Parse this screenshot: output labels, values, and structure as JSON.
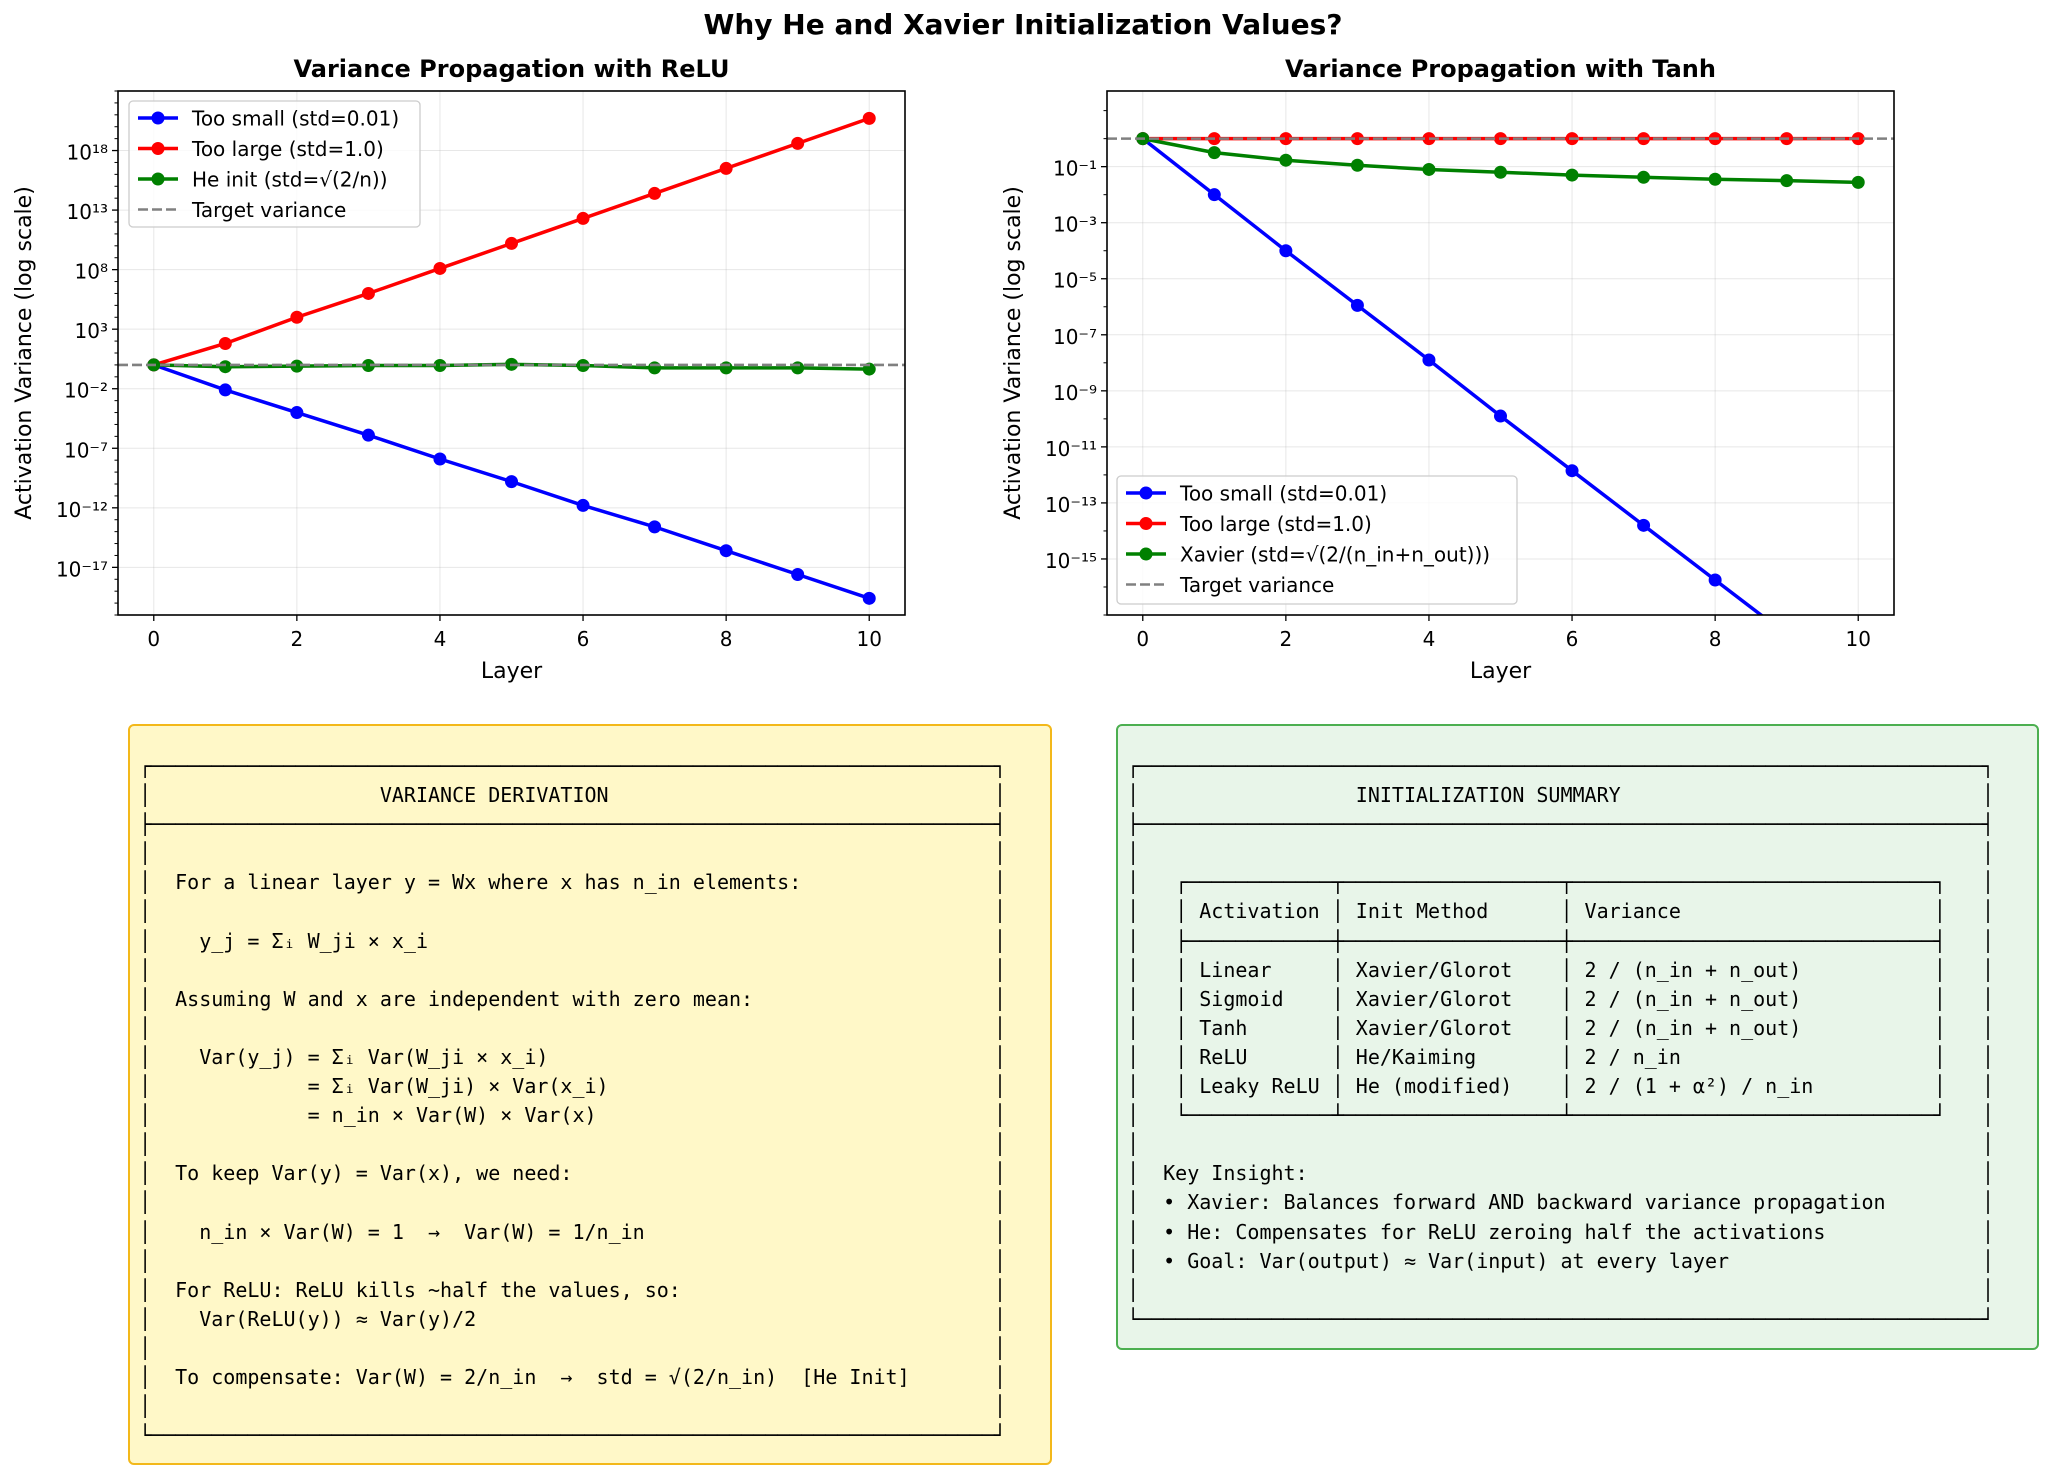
{
  "suptitle": "Why He and Xavier Initialization Values?",
  "colors": {
    "small": "#0000ff",
    "large": "#ff0000",
    "init": "#008000",
    "target": "#808080"
  },
  "chart_data": [
    {
      "type": "line",
      "title": "Variance Propagation with ReLU",
      "xlabel": "Layer",
      "ylabel": "Activation Variance (log scale)",
      "yscale": "log",
      "xlim": [
        -0.5,
        10.5
      ],
      "ylim_log10": [
        -21,
        23
      ],
      "xticks": [
        0,
        2,
        4,
        6,
        8,
        10
      ],
      "yticks_exp": [
        -17,
        -12,
        -7,
        -2,
        3,
        8,
        13,
        18
      ],
      "grid": true,
      "legend_loc": "upper-left",
      "x": [
        0,
        1,
        2,
        3,
        4,
        5,
        6,
        7,
        8,
        9,
        10
      ],
      "series": [
        {
          "name": "Too small (std=0.01)",
          "color": "#0000ff",
          "style": "solid",
          "marker": "o",
          "log10_values": [
            0,
            -2.1,
            -4.0,
            -5.9,
            -7.9,
            -9.8,
            -11.8,
            -13.6,
            -15.6,
            -17.6,
            -19.6
          ]
        },
        {
          "name": "Too large (std=1.0)",
          "color": "#ff0000",
          "style": "solid",
          "marker": "o",
          "log10_values": [
            0,
            1.8,
            4.0,
            6.0,
            8.1,
            10.2,
            12.3,
            14.4,
            16.5,
            18.6,
            20.7
          ]
        },
        {
          "name": "He init (std=√(2/n))",
          "color": "#008000",
          "style": "solid",
          "marker": "o",
          "log10_values": [
            0,
            -0.15,
            -0.1,
            -0.05,
            -0.05,
            0.05,
            -0.05,
            -0.25,
            -0.25,
            -0.25,
            -0.35
          ]
        },
        {
          "name": "Target variance",
          "color": "#808080",
          "style": "dashed",
          "marker": "none",
          "hline_log10": 0
        }
      ]
    },
    {
      "type": "line",
      "title": "Variance Propagation with Tanh",
      "xlabel": "Layer",
      "ylabel": "Activation Variance (log scale)",
      "yscale": "log",
      "xlim": [
        -0.5,
        10.5
      ],
      "ylim_log10": [
        -17,
        1.7
      ],
      "xticks": [
        0,
        2,
        4,
        6,
        8,
        10
      ],
      "yticks_exp": [
        -15,
        -13,
        -11,
        -9,
        -7,
        -5,
        -3,
        -1
      ],
      "grid": true,
      "legend_loc": "lower-left",
      "x": [
        0,
        1,
        2,
        3,
        4,
        5,
        6,
        7,
        8,
        9,
        10
      ],
      "series": [
        {
          "name": "Too small (std=0.01)",
          "color": "#0000ff",
          "style": "solid",
          "marker": "o",
          "log10_values": [
            0,
            -2.0,
            -4.0,
            -5.95,
            -7.9,
            -9.9,
            -11.85,
            -13.8,
            -15.75,
            -17.7,
            -19.6
          ]
        },
        {
          "name": "Too large (std=1.0)",
          "color": "#ff0000",
          "style": "solid",
          "marker": "o",
          "log10_values": [
            0,
            0,
            0,
            0,
            0,
            0,
            0,
            0,
            0,
            0,
            0
          ]
        },
        {
          "name": "Xavier (std=√(2/(n_in+n_out)))",
          "color": "#008000",
          "style": "solid",
          "marker": "o",
          "log10_values": [
            0,
            -0.5,
            -0.77,
            -0.95,
            -1.1,
            -1.2,
            -1.3,
            -1.38,
            -1.45,
            -1.5,
            -1.56
          ]
        },
        {
          "name": "Target variance",
          "color": "#808080",
          "style": "dashed",
          "marker": "none",
          "hline_log10": 0
        }
      ]
    }
  ],
  "derivation_text": "┌──────────────────────────────────────────────────────────────────────┐\n│                   VARIANCE DERIVATION                                │\n├──────────────────────────────────────────────────────────────────────┤\n│                                                                      │\n│  For a linear layer y = Wx where x has n_in elements:                │\n│                                                                      │\n│    y_j = Σᵢ W_ji × x_i                                               │\n│                                                                      │\n│  Assuming W and x are independent with zero mean:                    │\n│                                                                      │\n│    Var(y_j) = Σᵢ Var(W_ji × x_i)                                     │\n│             = Σᵢ Var(W_ji) × Var(x_i)                                │\n│             = n_in × Var(W) × Var(x)                                 │\n│                                                                      │\n│  To keep Var(y) = Var(x), we need:                                   │\n│                                                                      │\n│    n_in × Var(W) = 1  →  Var(W) = 1/n_in                             │\n│                                                                      │\n│  For ReLU: ReLU kills ~half the values, so:                          │\n│    Var(ReLU(y)) ≈ Var(y)/2                                           │\n│                                                                      │\n│  To compensate: Var(W) = 2/n_in  →  std = √(2/n_in)  [He Init]       │\n│                                                                      │\n└──────────────────────────────────────────────────────────────────────┘",
  "summary_text": "┌──────────────────────────────────────────────────────────────────────┐\n│                  INITIALIZATION SUMMARY                              │\n├──────────────────────────────────────────────────────────────────────┤\n│                                                                      │\n│   ┌────────────┬──────────────────┬──────────────────────────────┐   │\n│   │ Activation │ Init Method      │ Variance                     │   │\n│   ├────────────┼──────────────────┼──────────────────────────────┤   │\n│   │ Linear     │ Xavier/Glorot    │ 2 / (n_in + n_out)           │   │\n│   │ Sigmoid    │ Xavier/Glorot    │ 2 / (n_in + n_out)           │   │\n│   │ Tanh       │ Xavier/Glorot    │ 2 / (n_in + n_out)           │   │\n│   │ ReLU       │ He/Kaiming       │ 2 / n_in                     │   │\n│   │ Leaky ReLU │ He (modified)    │ 2 / (1 + α²) / n_in          │   │\n│   └────────────┴──────────────────┴──────────────────────────────┘   │\n│                                                                      │\n│  Key Insight:                                                        │\n│  • Xavier: Balances forward AND backward variance propagation        │\n│  • He: Compensates for ReLU zeroing half the activations             │\n│  • Goal: Var(output) ≈ Var(input) at every layer                     │\n│                                                                      │\n└──────────────────────────────────────────────────────────────────────┘"
}
